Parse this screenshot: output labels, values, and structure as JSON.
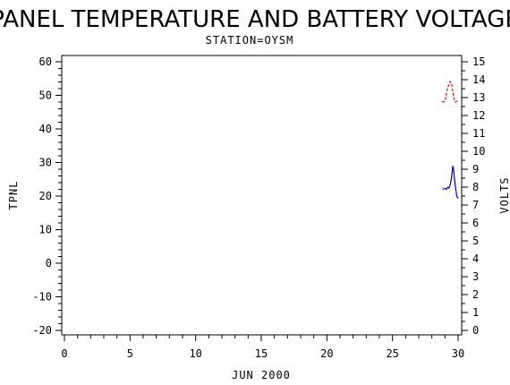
{
  "chart_data": {
    "type": "line",
    "title": "PANEL TEMPERATURE AND BATTERY VOLTAGE",
    "subtitle": "STATION=OYSM",
    "xlabel": "JUN 2000",
    "ylabel_left": "TPNL",
    "ylabel_right": "VOLTS",
    "xlim": [
      0,
      30
    ],
    "ylim_left": [
      -22,
      62
    ],
    "ylim_right": [
      -0.4,
      15.4
    ],
    "x_ticks": [
      0,
      5,
      10,
      15,
      20,
      25,
      30
    ],
    "y_ticks_left": [
      -20,
      -10,
      0,
      10,
      20,
      30,
      40,
      50,
      60
    ],
    "y_ticks_right": [
      0,
      1,
      2,
      3,
      4,
      5,
      6,
      7,
      8,
      9,
      10,
      11,
      12,
      13,
      14,
      15
    ],
    "grid": false,
    "colors": {
      "tpnl": "#0000cc",
      "volts": "#cc0000",
      "axis": "#000000"
    },
    "series": [
      {
        "axis": "left",
        "style": "solid",
        "points": [
          [
            28.8,
            22.0
          ],
          [
            29.0,
            22.3
          ],
          [
            29.1,
            22.0
          ],
          [
            29.2,
            22.6
          ],
          [
            29.3,
            22.4
          ],
          [
            29.4,
            23.5
          ],
          [
            29.5,
            25.5
          ],
          [
            29.6,
            29.0
          ],
          [
            29.65,
            28.0
          ],
          [
            29.7,
            26.0
          ],
          [
            29.8,
            22.5
          ],
          [
            29.9,
            20.0
          ],
          [
            30.0,
            19.3
          ]
        ]
      },
      {
        "axis": "right",
        "style": "dashed",
        "points": [
          [
            28.8,
            12.8
          ],
          [
            28.9,
            12.75
          ],
          [
            29.0,
            12.8
          ],
          [
            29.1,
            13.2
          ],
          [
            29.2,
            13.6
          ],
          [
            29.3,
            13.7
          ],
          [
            29.4,
            13.9
          ],
          [
            29.5,
            13.8
          ],
          [
            29.6,
            13.3
          ],
          [
            29.7,
            12.9
          ],
          [
            29.8,
            12.75
          ],
          [
            29.9,
            12.8
          ],
          [
            30.0,
            12.9
          ]
        ]
      }
    ]
  }
}
